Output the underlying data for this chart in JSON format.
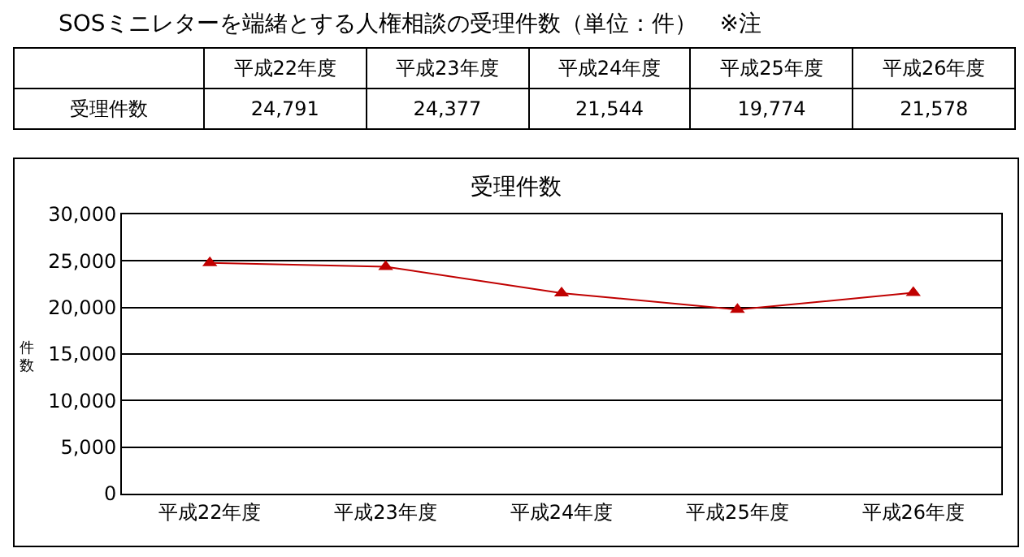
{
  "chart_data": {
    "type": "line",
    "title": "SOSミニレターを端緒とする人権相談の受理件数（単位：件）　※注",
    "subtitle": "受理件数",
    "ylabel": "件数",
    "categories": [
      "平成22年度",
      "平成23年度",
      "平成24年度",
      "平成25年度",
      "平成26年度"
    ],
    "series": [
      {
        "name": "受理件数",
        "color": "#c00000",
        "values": [
          24791,
          24377,
          21544,
          19774,
          21578
        ],
        "value_labels": [
          "24,791",
          "24,377",
          "21,544",
          "19,774",
          "21,578"
        ]
      }
    ],
    "ylim": [
      0,
      30000
    ],
    "yticks": [
      {
        "value": 0,
        "label": "0"
      },
      {
        "value": 5000,
        "label": "5,000"
      },
      {
        "value": 10000,
        "label": "10,000"
      },
      {
        "value": 15000,
        "label": "15,000"
      },
      {
        "value": 20000,
        "label": "20,000"
      },
      {
        "value": 25000,
        "label": "25,000"
      },
      {
        "value": 30000,
        "label": "30,000"
      }
    ],
    "grid": "y",
    "legend": false,
    "marker": "triangle",
    "line_style": "solid"
  }
}
